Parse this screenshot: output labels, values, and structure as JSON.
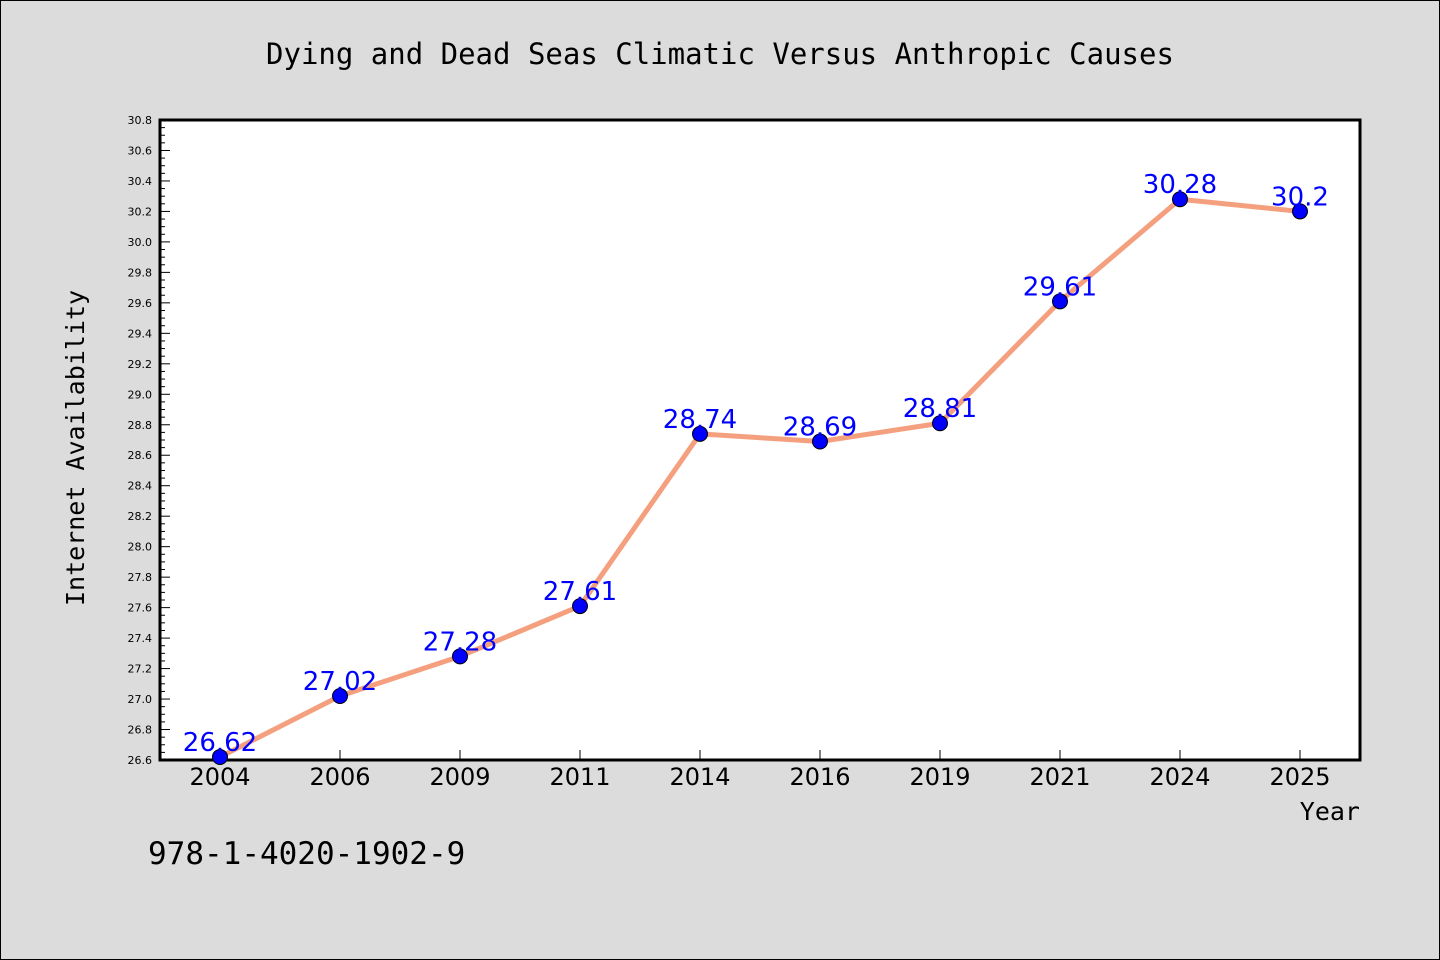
{
  "chart_data": {
    "type": "line",
    "title": "Dying and Dead Seas Climatic Versus Anthropic Causes",
    "xlabel": "Year",
    "ylabel": "Internet Availability",
    "categories": [
      "2004",
      "2006",
      "2009",
      "2011",
      "2014",
      "2016",
      "2019",
      "2021",
      "2024",
      "2025"
    ],
    "series": [
      {
        "values": [
          26.62,
          27.02,
          27.28,
          27.61,
          28.74,
          28.69,
          28.81,
          29.61,
          30.28,
          30.2
        ]
      }
    ],
    "data_labels": [
      "26.62",
      "27.02",
      "27.28",
      "27.61",
      "28.74",
      "28.69",
      "28.81",
      "29.61",
      "30.28",
      "30.2"
    ],
    "ylim": [
      26.6,
      30.8
    ],
    "yticks": [
      "26.6",
      "26.8",
      "27.0",
      "27.2",
      "27.4",
      "27.6",
      "27.8",
      "28.0",
      "28.2",
      "28.4",
      "28.6",
      "28.8",
      "29.0",
      "29.2",
      "29.4",
      "29.6",
      "29.8",
      "30.0",
      "30.2",
      "30.4",
      "30.6",
      "30.8"
    ],
    "grid": false,
    "line_color": "#f4a07f",
    "marker_color": "#0000ff",
    "label_color": "#0000ff"
  },
  "footer": {
    "isbn": "978-1-4020-1902-9"
  }
}
